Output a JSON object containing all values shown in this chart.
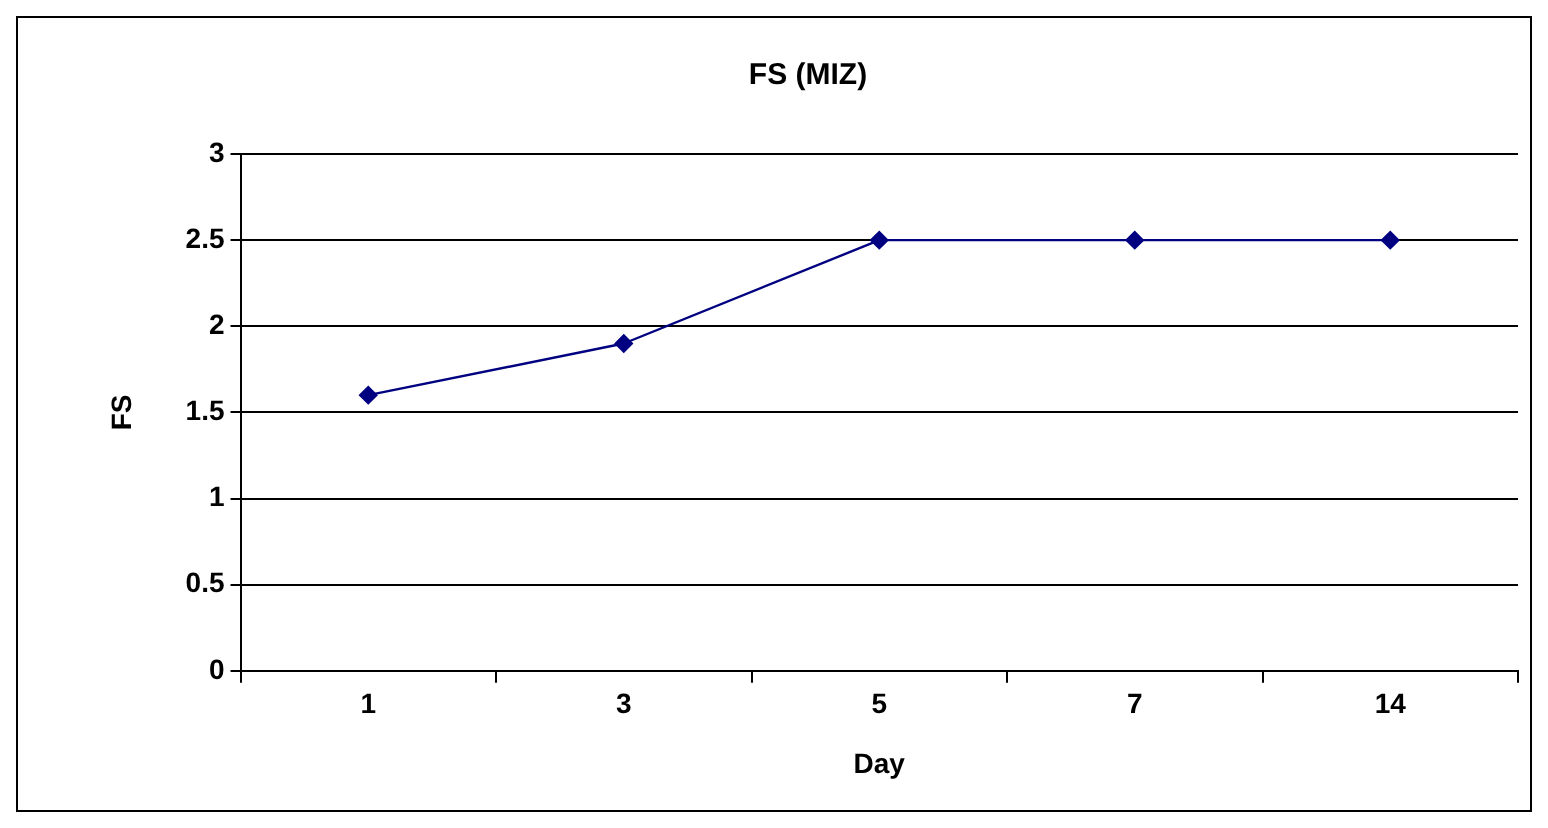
{
  "chart_data": {
    "type": "line",
    "title": "FS (MIZ)",
    "xlabel": "Day",
    "ylabel": "FS",
    "categories": [
      "1",
      "3",
      "5",
      "7",
      "14"
    ],
    "series": [
      {
        "color": "#000080",
        "values": [
          1.6,
          1.9,
          2.5,
          2.5,
          2.5
        ]
      }
    ],
    "ylim": [
      0,
      3
    ],
    "yticks": [
      0,
      0.5,
      1,
      1.5,
      2,
      2.5,
      3
    ],
    "grid": "y",
    "marker": "diamond",
    "line_style": "solid"
  }
}
